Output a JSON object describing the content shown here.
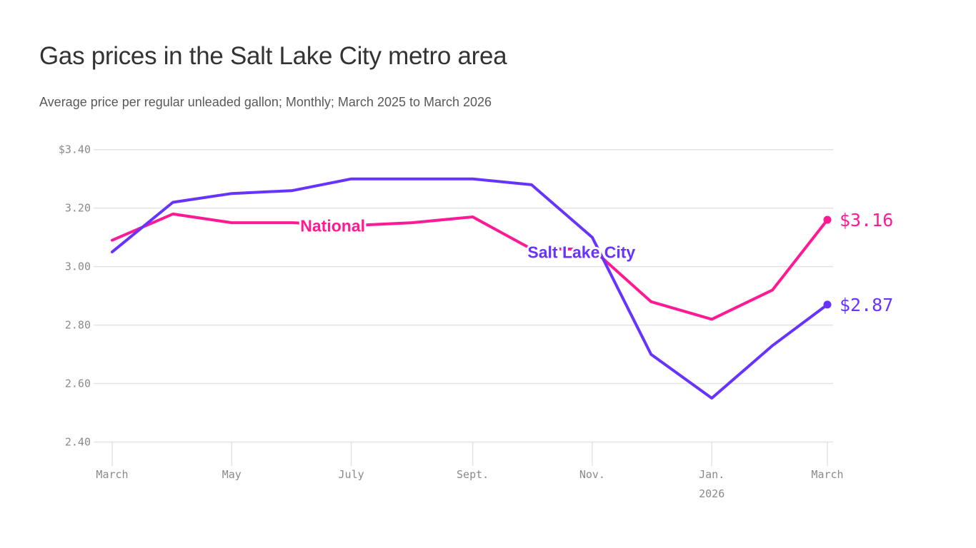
{
  "header": {
    "title": "Gas prices in the Salt Lake City metro area",
    "subtitle": "Average price per regular unleaded gallon; Monthly; March 2025 to March 2026"
  },
  "chart_data": {
    "type": "line",
    "title": "Gas prices in the Salt Lake City metro area",
    "subtitle": "Average price per regular unleaded gallon; Monthly; March 2025 to March 2026",
    "xlabel": "",
    "ylabel": "",
    "x": [
      "2025-03",
      "2025-04",
      "2025-05",
      "2025-06",
      "2025-07",
      "2025-08",
      "2025-09",
      "2025-10",
      "2025-11",
      "2025-12",
      "2026-01",
      "2026-02",
      "2026-03"
    ],
    "x_day_offsets": [
      0,
      31,
      61,
      92,
      122,
      153,
      184,
      214,
      245,
      275,
      306,
      337,
      365
    ],
    "x_range_days": [
      0,
      365
    ],
    "ylim": [
      2.4,
      3.4
    ],
    "grid": true,
    "legend": "inline labels",
    "y_ticks": [
      {
        "value": 3.4,
        "label": "$3.40"
      },
      {
        "value": 3.2,
        "label": "3.20"
      },
      {
        "value": 3.0,
        "label": "3.00"
      },
      {
        "value": 2.8,
        "label": "2.80"
      },
      {
        "value": 2.6,
        "label": "2.60"
      },
      {
        "value": 2.4,
        "label": "2.40"
      }
    ],
    "x_ticks": [
      {
        "day": 0,
        "label": "March",
        "sublabel": ""
      },
      {
        "day": 61,
        "label": "May",
        "sublabel": ""
      },
      {
        "day": 122,
        "label": "July",
        "sublabel": ""
      },
      {
        "day": 184,
        "label": "Sept.",
        "sublabel": ""
      },
      {
        "day": 245,
        "label": "Nov.",
        "sublabel": ""
      },
      {
        "day": 306,
        "label": "Jan.",
        "sublabel": "2026"
      },
      {
        "day": 365,
        "label": "March",
        "sublabel": ""
      }
    ],
    "series": [
      {
        "name": "National",
        "color": "#FF1A94",
        "values": [
          3.09,
          3.18,
          3.15,
          3.15,
          3.14,
          3.15,
          3.17,
          3.06,
          3.06,
          2.88,
          2.82,
          2.92,
          3.16
        ],
        "label_anchor": {
          "day": 96,
          "value": 3.12
        },
        "end_label": "$3.16"
      },
      {
        "name": "Salt Lake City",
        "color": "#6633FF",
        "values": [
          3.05,
          3.22,
          3.25,
          3.26,
          3.3,
          3.3,
          3.3,
          3.28,
          3.1,
          2.7,
          2.55,
          2.73,
          2.87
        ],
        "label_anchor": {
          "day": 212,
          "value": 3.03
        },
        "end_label": "$2.87"
      }
    ]
  }
}
